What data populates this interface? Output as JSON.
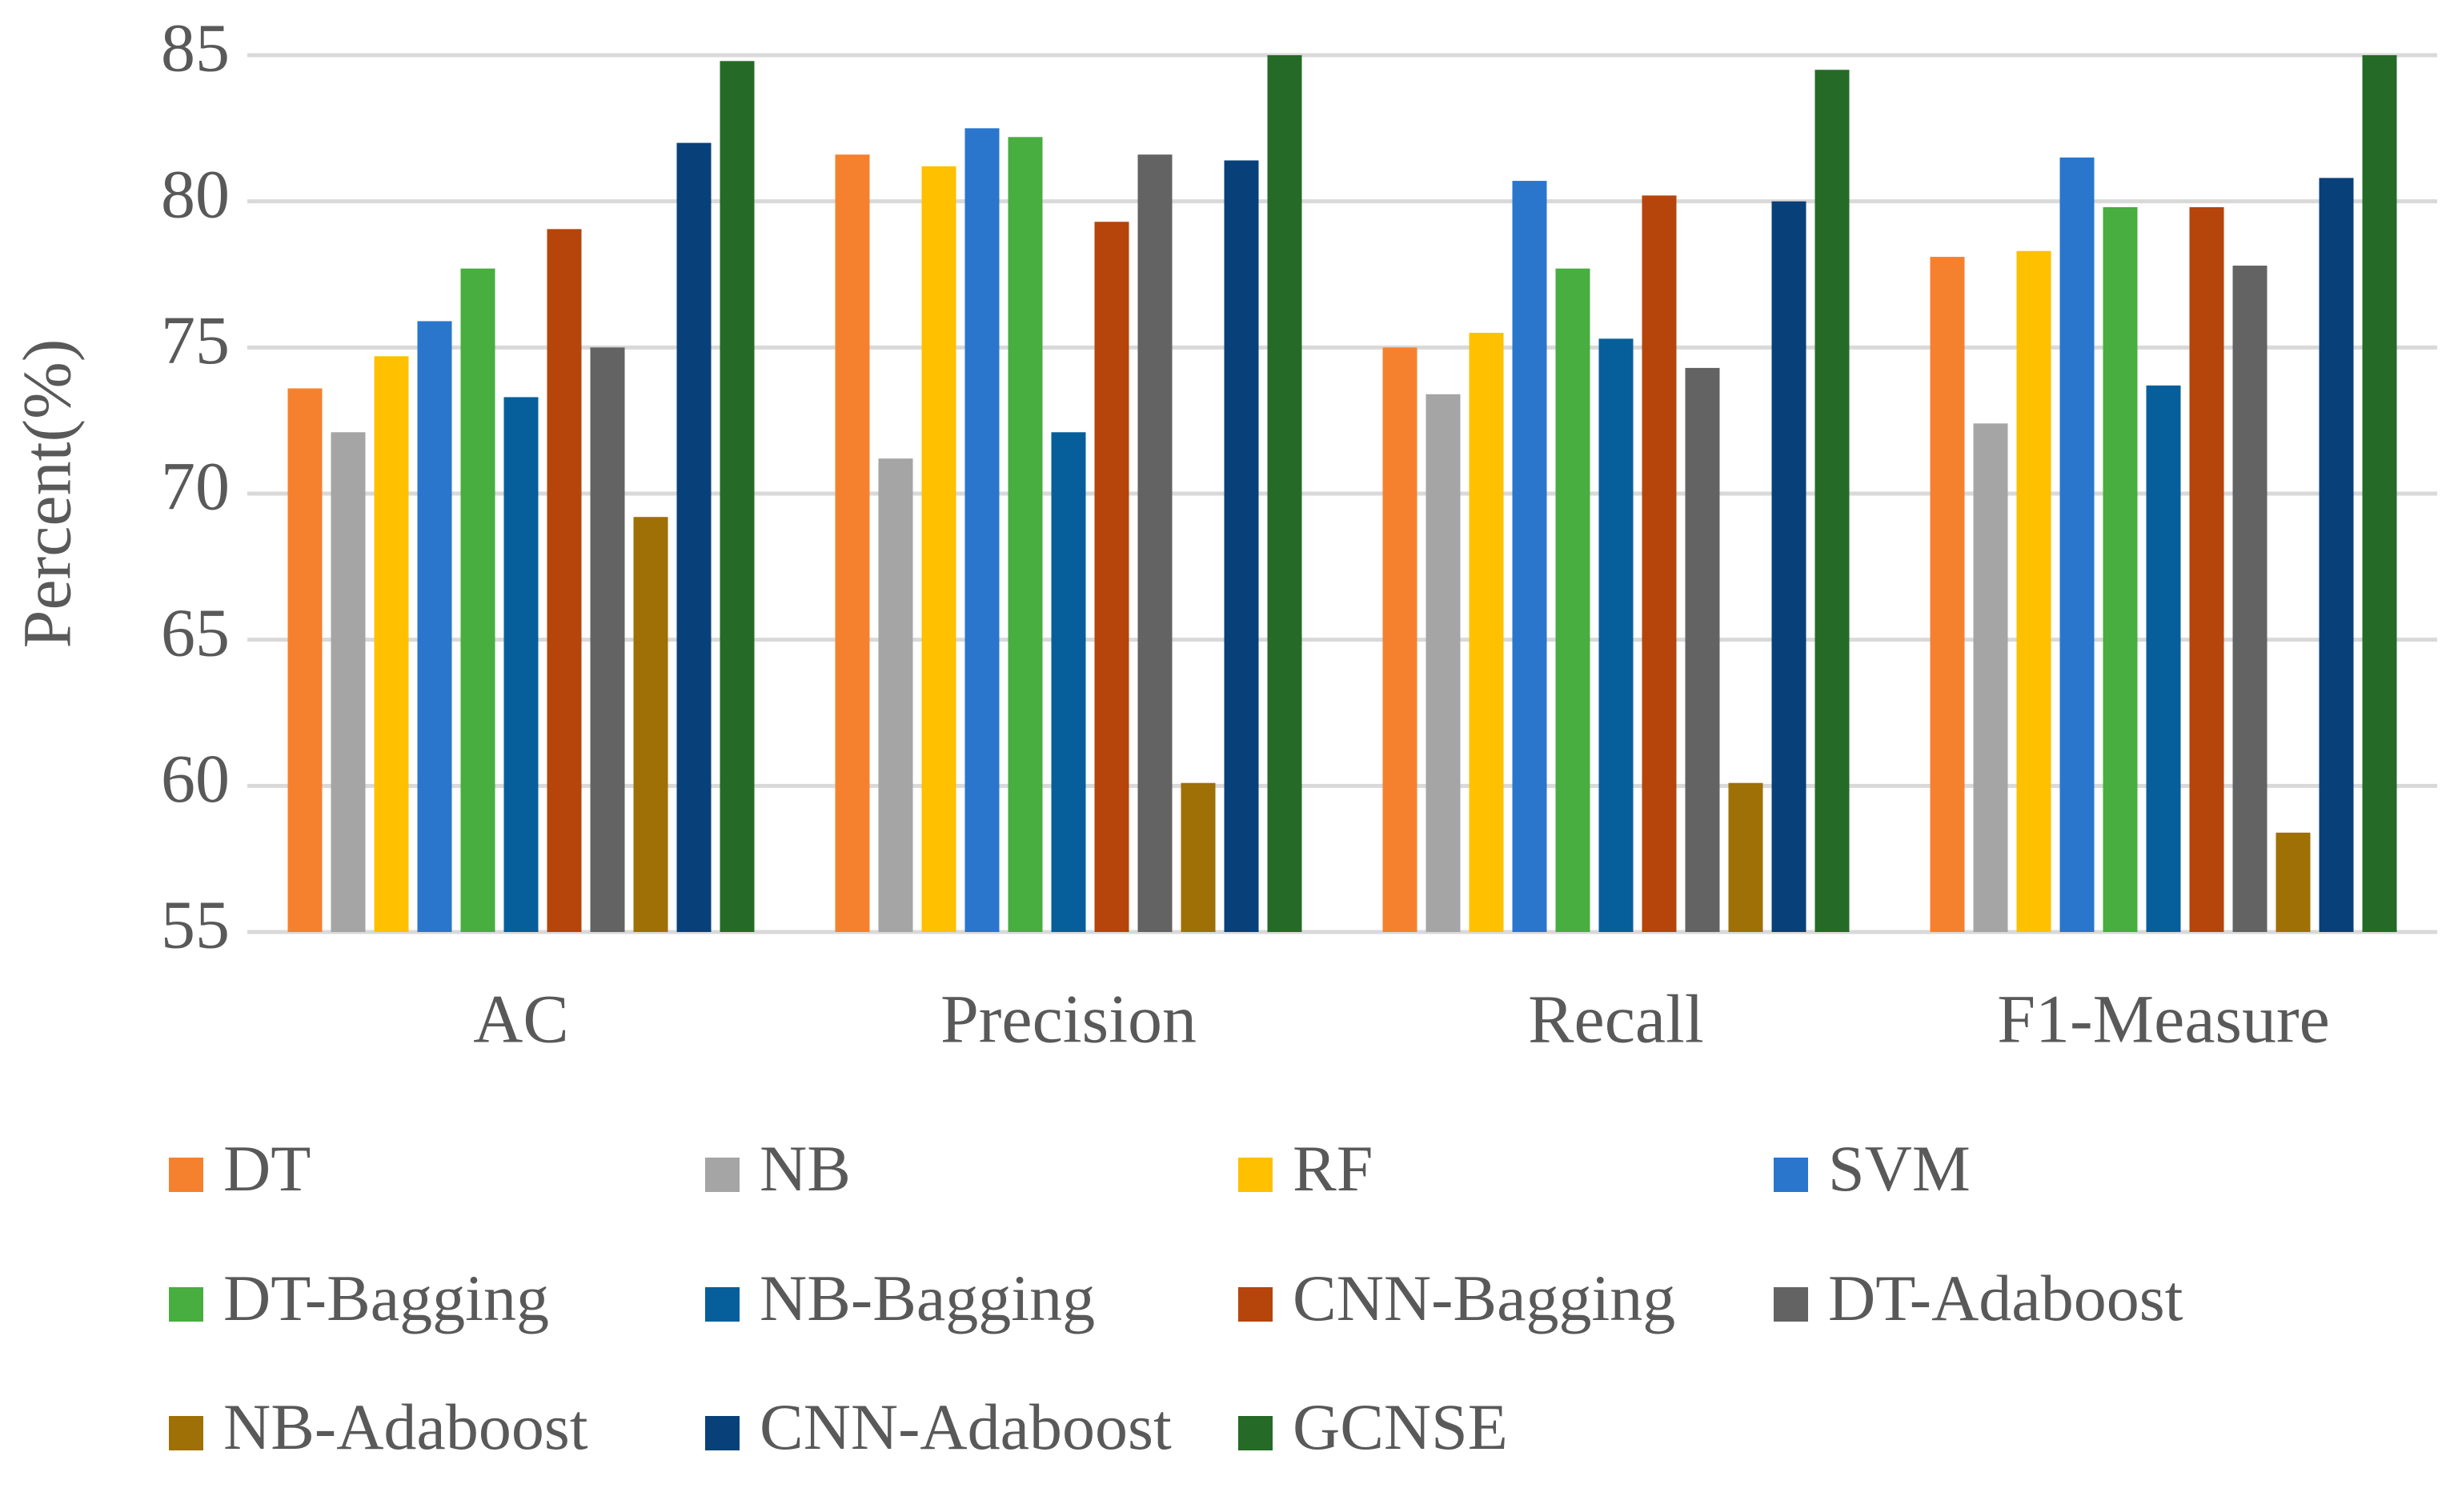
{
  "chart_data": {
    "type": "bar",
    "y_label": "Percent(%)",
    "categories": [
      "AC",
      "Precision",
      "Recall",
      "F1-Measure"
    ],
    "series": [
      {
        "name": "DT",
        "color": "#f5812f",
        "values": [
          73.6,
          81.6,
          75,
          78.1
        ]
      },
      {
        "name": "NB",
        "color": "#a5a5a5",
        "values": [
          72.1,
          71.2,
          73.4,
          72.4
        ]
      },
      {
        "name": "RF",
        "color": "#ffc000",
        "values": [
          74.7,
          81.2,
          75.5,
          78.3
        ]
      },
      {
        "name": "SVM",
        "color": "#2a76cc",
        "values": [
          75.9,
          82.5,
          80.7,
          81.5
        ]
      },
      {
        "name": "DT-Bagging",
        "color": "#47ae3f",
        "values": [
          77.7,
          82.2,
          77.7,
          79.8
        ]
      },
      {
        "name": "NB-Bagging",
        "color": "#065f9b",
        "values": [
          73.3,
          72.1,
          75.3,
          73.7
        ]
      },
      {
        "name": "CNN-Bagging",
        "color": "#b5450a",
        "values": [
          79.05,
          79.3,
          80.2,
          79.8
        ]
      },
      {
        "name": "DT-Adaboost",
        "color": "#636363",
        "values": [
          75,
          81.6,
          74.3,
          77.8
        ]
      },
      {
        "name": "NB-Adaboost",
        "color": "#9e7006",
        "values": [
          69.2,
          60.1,
          60.1,
          58.4
        ]
      },
      {
        "name": "CNN-Adaboost",
        "color": "#08407a",
        "values": [
          82,
          81.4,
          80,
          80.8
        ]
      },
      {
        "name": "GCNSE",
        "color": "#256b27",
        "values": [
          84.8,
          85,
          84.5,
          85
        ]
      }
    ],
    "ylim": [
      55,
      85
    ],
    "yticks": [
      55,
      60,
      65,
      70,
      75,
      80,
      85
    ],
    "grid": true,
    "legend": "bottom"
  }
}
